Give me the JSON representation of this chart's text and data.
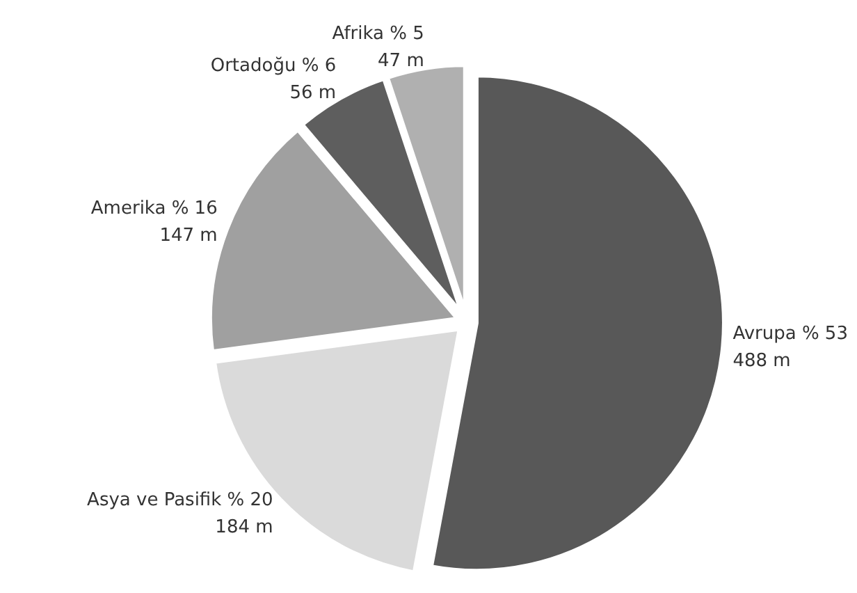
{
  "chart_data": {
    "type": "pie",
    "categories": [
      "Avrupa % 53",
      "Asya ve Pasifik % 20",
      "Amerika % 16",
      "Ortadoğu % 6",
      "Afrika % 5"
    ],
    "values": [
      488,
      184,
      147,
      56,
      47
    ],
    "value_labels": [
      "488 m",
      "184 m",
      "147 m",
      "56 m",
      "47 m"
    ],
    "colors": [
      "#585858",
      "#dadada",
      "#a0a0a0",
      "#5e5e5e",
      "#b0b0b0"
    ]
  }
}
